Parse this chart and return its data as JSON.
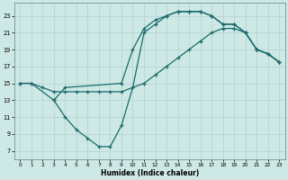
{
  "xlabel": "Humidex (Indice chaleur)",
  "bg_color": "#cde8e5",
  "grid_color": "#b8d8d5",
  "line_color": "#1a6b6b",
  "xlim": [
    -0.5,
    23.5
  ],
  "ylim": [
    6.0,
    24.5
  ],
  "xticks": [
    0,
    1,
    2,
    3,
    4,
    5,
    6,
    7,
    8,
    9,
    10,
    11,
    12,
    13,
    14,
    15,
    16,
    17,
    18,
    19,
    20,
    21,
    22,
    23
  ],
  "yticks": [
    7,
    9,
    11,
    13,
    15,
    17,
    19,
    21,
    23
  ],
  "curve1_x": [
    0,
    1,
    3,
    4,
    5,
    6,
    7,
    8,
    9,
    10,
    11,
    12,
    13,
    14,
    15,
    16,
    17,
    18,
    19,
    20,
    21,
    22,
    23
  ],
  "curve1_y": [
    15,
    15,
    13,
    11,
    9.5,
    8.5,
    7.5,
    7.5,
    10.0,
    14.5,
    21.0,
    22.0,
    23.0,
    23.5,
    23.5,
    23.5,
    23.0,
    22.0,
    22.0,
    21.0,
    19.0,
    18.5,
    17.5
  ],
  "curve2_x": [
    0,
    1,
    2,
    3,
    4,
    5,
    6,
    7,
    8,
    9,
    10,
    11,
    12,
    13,
    14,
    15,
    16,
    17,
    18,
    19,
    20,
    21,
    22,
    23
  ],
  "curve2_y": [
    15,
    15,
    14.5,
    14.0,
    14.0,
    14.0,
    14.0,
    14.0,
    14.0,
    14.0,
    14.5,
    15.0,
    16.0,
    17.0,
    18.0,
    19.0,
    20.0,
    21.0,
    21.5,
    21.5,
    21.0,
    19.0,
    18.5,
    17.5
  ],
  "curve3_x": [
    3,
    4,
    9,
    10,
    11,
    12,
    13,
    14,
    15,
    16,
    17,
    18,
    19,
    20,
    21,
    22,
    23
  ],
  "curve3_y": [
    13.0,
    14.5,
    15.0,
    19.0,
    21.5,
    22.5,
    23.0,
    23.5,
    23.5,
    23.5,
    23.0,
    22.0,
    22.0,
    21.0,
    19.0,
    18.5,
    17.5
  ]
}
